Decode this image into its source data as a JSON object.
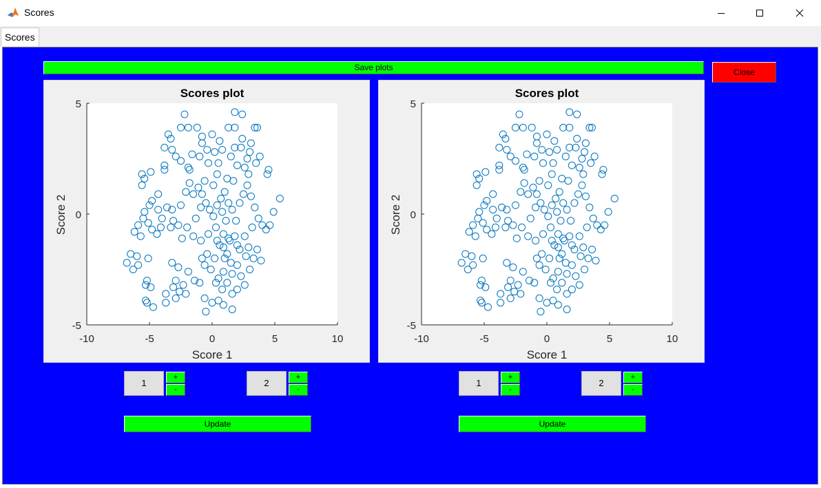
{
  "window": {
    "title": "Scores",
    "minimize": "—",
    "maximize": "☐",
    "close": "✕"
  },
  "tab": {
    "label": "Scores"
  },
  "toolbar": {
    "save_label": "Save plots",
    "close_label": "Close"
  },
  "plots": [
    {
      "title": "Scores plot",
      "xlabel": "Score 1",
      "ylabel": "Score 2",
      "xticks": [
        "-10",
        "-5",
        "0",
        "5",
        "10"
      ],
      "yticks": [
        "5",
        "0",
        "-5"
      ]
    },
    {
      "title": "Scores plot",
      "xlabel": "Score 1",
      "ylabel": "Score 2",
      "xticks": [
        "-10",
        "-5",
        "0",
        "5",
        "10"
      ],
      "yticks": [
        "5",
        "0",
        "-5"
      ]
    }
  ],
  "controls": [
    {
      "x_component": "1",
      "y_component": "2",
      "plus": "+",
      "minus": "-",
      "update_label": "Update"
    },
    {
      "x_component": "1",
      "y_component": "2",
      "plus": "+",
      "minus": "-",
      "update_label": "Update"
    }
  ],
  "colors": {
    "background": "#0000ff",
    "button_green": "#00ff00",
    "button_red": "#ff0000",
    "marker": "#0072bd"
  },
  "chart_data": [
    {
      "type": "scatter",
      "title": "Scores plot",
      "xlabel": "Score 1",
      "ylabel": "Score 2",
      "xlim": [
        -10,
        10
      ],
      "ylim": [
        -5,
        5
      ],
      "grid": false,
      "marker": "open-circle",
      "points": [
        [
          -2.2,
          4.5
        ],
        [
          -3.5,
          3.6
        ],
        [
          -3.3,
          3.4
        ],
        [
          -3.8,
          3.0
        ],
        [
          -2.5,
          3.9
        ],
        [
          -1.9,
          3.9
        ],
        [
          -1.2,
          3.9
        ],
        [
          -0.8,
          3.5
        ],
        [
          0,
          3.6
        ],
        [
          1.3,
          3.9
        ],
        [
          1.8,
          3.9
        ],
        [
          2.4,
          3.4
        ],
        [
          3.4,
          3.9
        ],
        [
          3.6,
          3.9
        ],
        [
          1.8,
          4.6
        ],
        [
          2.4,
          4.5
        ],
        [
          -5.6,
          1.8
        ],
        [
          -5.4,
          1.6
        ],
        [
          -4.9,
          1.9
        ],
        [
          -3.8,
          2.2
        ],
        [
          -3.8,
          2.0
        ],
        [
          -1.9,
          2.1
        ],
        [
          -1.8,
          2.0
        ],
        [
          -2.5,
          2.4
        ],
        [
          -0.3,
          2.3
        ],
        [
          0.5,
          2.3
        ],
        [
          2.0,
          2.2
        ],
        [
          2.6,
          2.1
        ],
        [
          3.5,
          2.3
        ],
        [
          4.5,
          2.0
        ],
        [
          4.4,
          1.8
        ],
        [
          -5.6,
          1.3
        ],
        [
          -1.0,
          2.6
        ],
        [
          0.2,
          2.8
        ],
        [
          1.5,
          2.6
        ],
        [
          3.0,
          2.8
        ],
        [
          -3.2,
          2.9
        ],
        [
          -0.4,
          2.9
        ],
        [
          2.3,
          3.0
        ],
        [
          3.1,
          3.2
        ],
        [
          -2.9,
          2.6
        ],
        [
          -1.6,
          2.7
        ],
        [
          0.8,
          2.9
        ],
        [
          1.8,
          3.0
        ],
        [
          2.8,
          2.5
        ],
        [
          3.8,
          2.6
        ],
        [
          -0.8,
          3.2
        ],
        [
          0.6,
          3.3
        ],
        [
          -4.3,
          0.9
        ],
        [
          -4.8,
          0.6
        ],
        [
          -5.0,
          0.4
        ],
        [
          -5.4,
          0.1
        ],
        [
          -5.5,
          -0.2
        ],
        [
          -5.1,
          -0.4
        ],
        [
          -4.8,
          -0.7
        ],
        [
          -4.4,
          -0.9
        ],
        [
          -4.1,
          -0.6
        ],
        [
          -4.0,
          -0.2
        ],
        [
          -4.3,
          0.2
        ],
        [
          -5.9,
          -0.5
        ],
        [
          -6.2,
          -0.8
        ],
        [
          -5.7,
          -1.0
        ],
        [
          -3.6,
          0.3
        ],
        [
          -3.2,
          0.2
        ],
        [
          -3.1,
          -0.3
        ],
        [
          -3.3,
          -0.6
        ],
        [
          -2.7,
          -0.5
        ],
        [
          -2.5,
          0.4
        ],
        [
          -1.5,
          0.9
        ],
        [
          -1.1,
          1.2
        ],
        [
          -0.8,
          0.9
        ],
        [
          -0.5,
          0.5
        ],
        [
          -0.2,
          0.2
        ],
        [
          0.1,
          -0.1
        ],
        [
          0.4,
          0.4
        ],
        [
          0.7,
          0.7
        ],
        [
          1.0,
          1.0
        ],
        [
          1.3,
          0.5
        ],
        [
          1.6,
          0.2
        ],
        [
          1.9,
          -0.3
        ],
        [
          2.2,
          0.5
        ],
        [
          2.5,
          0.9
        ],
        [
          2.8,
          1.3
        ],
        [
          3.1,
          0.8
        ],
        [
          3.4,
          0.3
        ],
        [
          3.7,
          -0.2
        ],
        [
          4.0,
          -0.5
        ],
        [
          4.3,
          -0.7
        ],
        [
          4.6,
          -0.5
        ],
        [
          4.9,
          0.1
        ],
        [
          5.4,
          0.7
        ],
        [
          3.2,
          -0.6
        ],
        [
          2.6,
          -1.0
        ],
        [
          2.0,
          -1.4
        ],
        [
          1.4,
          -1.2
        ],
        [
          0.9,
          -0.9
        ],
        [
          0.3,
          -0.6
        ],
        [
          -0.3,
          -0.9
        ],
        [
          -0.9,
          -1.2
        ],
        [
          -1.5,
          -1.0
        ],
        [
          -2.0,
          -0.6
        ],
        [
          -2.4,
          -1.1
        ],
        [
          -0.6,
          1.5
        ],
        [
          0.4,
          1.8
        ],
        [
          1.2,
          1.6
        ],
        [
          -1.8,
          1.4
        ],
        [
          -2.1,
          1.0
        ],
        [
          2.9,
          1.8
        ],
        [
          1.7,
          1.5
        ],
        [
          0.1,
          1.3
        ],
        [
          -0.9,
          0.3
        ],
        [
          -1.3,
          -0.2
        ],
        [
          0.8,
          0.1
        ],
        [
          1.1,
          -0.3
        ],
        [
          0.6,
          -1.4
        ],
        [
          1.2,
          -1.8
        ],
        [
          1.5,
          -2.2
        ],
        [
          0.9,
          -2.6
        ],
        [
          0.5,
          -2.9
        ],
        [
          1.2,
          -3.1
        ],
        [
          1.6,
          -2.7
        ],
        [
          2.0,
          -2.3
        ],
        [
          2.3,
          -2.8
        ],
        [
          2.6,
          -3.2
        ],
        [
          2.0,
          -3.4
        ],
        [
          1.6,
          -3.6
        ],
        [
          0.8,
          -3.4
        ],
        [
          0.3,
          -3.1
        ],
        [
          -0.1,
          -2.5
        ],
        [
          0.2,
          -2.0
        ],
        [
          -0.4,
          -1.8
        ],
        [
          -0.6,
          -2.3
        ],
        [
          0.9,
          -1.5
        ],
        [
          1.3,
          -1.1
        ],
        [
          2.9,
          -1.5
        ],
        [
          3.3,
          -2.0
        ],
        [
          3.6,
          -1.6
        ],
        [
          3.9,
          -2.1
        ],
        [
          3.0,
          -2.5
        ],
        [
          2.7,
          -1.9
        ],
        [
          2.2,
          -1.6
        ],
        [
          1.8,
          -1.0
        ],
        [
          1.0,
          -2.0
        ],
        [
          0.4,
          -1.2
        ],
        [
          -6.8,
          -2.2
        ],
        [
          -6.5,
          -1.8
        ],
        [
          -6.0,
          -1.9
        ],
        [
          -5.9,
          -2.3
        ],
        [
          -6.3,
          -2.5
        ],
        [
          -5.1,
          -2.0
        ],
        [
          -5.2,
          -3.0
        ],
        [
          -5.3,
          -3.2
        ],
        [
          -4.9,
          -3.3
        ],
        [
          -5.3,
          -3.9
        ],
        [
          -5.2,
          -4.0
        ],
        [
          -4.7,
          -4.2
        ],
        [
          -3.7,
          -3.6
        ],
        [
          -3.7,
          -4.0
        ],
        [
          -2.7,
          -2.4
        ],
        [
          -3.2,
          -2.2
        ],
        [
          -2.9,
          -3.0
        ],
        [
          -3.1,
          -3.3
        ],
        [
          -2.6,
          -3.5
        ],
        [
          -2.9,
          -3.8
        ],
        [
          -2.3,
          -3.2
        ],
        [
          -2.1,
          -3.6
        ],
        [
          -0.6,
          -3.8
        ],
        [
          0,
          -4.0
        ],
        [
          0.5,
          -3.9
        ],
        [
          0.9,
          -4.1
        ],
        [
          1.6,
          -4.3
        ],
        [
          -0.5,
          -4.4
        ],
        [
          -0.8,
          -2.0
        ],
        [
          -1.4,
          -3.0
        ],
        [
          -1.0,
          -3.1
        ],
        [
          -1.9,
          -2.6
        ]
      ]
    },
    {
      "type": "scatter",
      "title": "Scores plot",
      "xlabel": "Score 1",
      "ylabel": "Score 2",
      "xlim": [
        -10,
        10
      ],
      "ylim": [
        -5,
        5
      ],
      "grid": false,
      "marker": "open-circle",
      "points": [
        [
          -2.2,
          4.5
        ],
        [
          -3.5,
          3.6
        ],
        [
          -3.3,
          3.4
        ],
        [
          -3.8,
          3.0
        ],
        [
          -2.5,
          3.9
        ],
        [
          -1.9,
          3.9
        ],
        [
          -1.2,
          3.9
        ],
        [
          -0.8,
          3.5
        ],
        [
          0,
          3.6
        ],
        [
          1.3,
          3.9
        ],
        [
          1.8,
          3.9
        ],
        [
          2.4,
          3.4
        ],
        [
          3.4,
          3.9
        ],
        [
          3.6,
          3.9
        ],
        [
          1.8,
          4.6
        ],
        [
          2.4,
          4.5
        ],
        [
          -5.6,
          1.8
        ],
        [
          -5.4,
          1.6
        ],
        [
          -4.9,
          1.9
        ],
        [
          -3.8,
          2.2
        ],
        [
          -3.8,
          2.0
        ],
        [
          -1.9,
          2.1
        ],
        [
          -1.8,
          2.0
        ],
        [
          -2.5,
          2.4
        ],
        [
          -0.3,
          2.3
        ],
        [
          0.5,
          2.3
        ],
        [
          2.0,
          2.2
        ],
        [
          2.6,
          2.1
        ],
        [
          3.5,
          2.3
        ],
        [
          4.5,
          2.0
        ],
        [
          4.4,
          1.8
        ],
        [
          -5.6,
          1.3
        ],
        [
          -1.0,
          2.6
        ],
        [
          0.2,
          2.8
        ],
        [
          1.5,
          2.6
        ],
        [
          3.0,
          2.8
        ],
        [
          -3.2,
          2.9
        ],
        [
          -0.4,
          2.9
        ],
        [
          2.3,
          3.0
        ],
        [
          3.1,
          3.2
        ],
        [
          -2.9,
          2.6
        ],
        [
          -1.6,
          2.7
        ],
        [
          0.8,
          2.9
        ],
        [
          1.8,
          3.0
        ],
        [
          2.8,
          2.5
        ],
        [
          3.8,
          2.6
        ],
        [
          -0.8,
          3.2
        ],
        [
          0.6,
          3.3
        ],
        [
          -4.3,
          0.9
        ],
        [
          -4.8,
          0.6
        ],
        [
          -5.0,
          0.4
        ],
        [
          -5.4,
          0.1
        ],
        [
          -5.5,
          -0.2
        ],
        [
          -5.1,
          -0.4
        ],
        [
          -4.8,
          -0.7
        ],
        [
          -4.4,
          -0.9
        ],
        [
          -4.1,
          -0.6
        ],
        [
          -4.0,
          -0.2
        ],
        [
          -4.3,
          0.2
        ],
        [
          -5.9,
          -0.5
        ],
        [
          -6.2,
          -0.8
        ],
        [
          -5.7,
          -1.0
        ],
        [
          -3.6,
          0.3
        ],
        [
          -3.2,
          0.2
        ],
        [
          -3.1,
          -0.3
        ],
        [
          -3.3,
          -0.6
        ],
        [
          -2.7,
          -0.5
        ],
        [
          -2.5,
          0.4
        ],
        [
          -1.5,
          0.9
        ],
        [
          -1.1,
          1.2
        ],
        [
          -0.8,
          0.9
        ],
        [
          -0.5,
          0.5
        ],
        [
          -0.2,
          0.2
        ],
        [
          0.1,
          -0.1
        ],
        [
          0.4,
          0.4
        ],
        [
          0.7,
          0.7
        ],
        [
          1.0,
          1.0
        ],
        [
          1.3,
          0.5
        ],
        [
          1.6,
          0.2
        ],
        [
          1.9,
          -0.3
        ],
        [
          2.2,
          0.5
        ],
        [
          2.5,
          0.9
        ],
        [
          2.8,
          1.3
        ],
        [
          3.1,
          0.8
        ],
        [
          3.4,
          0.3
        ],
        [
          3.7,
          -0.2
        ],
        [
          4.0,
          -0.5
        ],
        [
          4.3,
          -0.7
        ],
        [
          4.6,
          -0.5
        ],
        [
          4.9,
          0.1
        ],
        [
          5.4,
          0.7
        ],
        [
          3.2,
          -0.6
        ],
        [
          2.6,
          -1.0
        ],
        [
          2.0,
          -1.4
        ],
        [
          1.4,
          -1.2
        ],
        [
          0.9,
          -0.9
        ],
        [
          0.3,
          -0.6
        ],
        [
          -0.3,
          -0.9
        ],
        [
          -0.9,
          -1.2
        ],
        [
          -1.5,
          -1.0
        ],
        [
          -2.0,
          -0.6
        ],
        [
          -2.4,
          -1.1
        ],
        [
          -0.6,
          1.5
        ],
        [
          0.4,
          1.8
        ],
        [
          1.2,
          1.6
        ],
        [
          -1.8,
          1.4
        ],
        [
          -2.1,
          1.0
        ],
        [
          2.9,
          1.8
        ],
        [
          1.7,
          1.5
        ],
        [
          0.1,
          1.3
        ],
        [
          -0.9,
          0.3
        ],
        [
          -1.3,
          -0.2
        ],
        [
          0.8,
          0.1
        ],
        [
          1.1,
          -0.3
        ],
        [
          0.6,
          -1.4
        ],
        [
          1.2,
          -1.8
        ],
        [
          1.5,
          -2.2
        ],
        [
          0.9,
          -2.6
        ],
        [
          0.5,
          -2.9
        ],
        [
          1.2,
          -3.1
        ],
        [
          1.6,
          -2.7
        ],
        [
          2.0,
          -2.3
        ],
        [
          2.3,
          -2.8
        ],
        [
          2.6,
          -3.2
        ],
        [
          2.0,
          -3.4
        ],
        [
          1.6,
          -3.6
        ],
        [
          0.8,
          -3.4
        ],
        [
          0.3,
          -3.1
        ],
        [
          -0.1,
          -2.5
        ],
        [
          0.2,
          -2.0
        ],
        [
          -0.4,
          -1.8
        ],
        [
          -0.6,
          -2.3
        ],
        [
          0.9,
          -1.5
        ],
        [
          1.3,
          -1.1
        ],
        [
          2.9,
          -1.5
        ],
        [
          3.3,
          -2.0
        ],
        [
          3.6,
          -1.6
        ],
        [
          3.9,
          -2.1
        ],
        [
          3.0,
          -2.5
        ],
        [
          2.7,
          -1.9
        ],
        [
          2.2,
          -1.6
        ],
        [
          1.8,
          -1.0
        ],
        [
          1.0,
          -2.0
        ],
        [
          0.4,
          -1.2
        ],
        [
          -6.8,
          -2.2
        ],
        [
          -6.5,
          -1.8
        ],
        [
          -6.0,
          -1.9
        ],
        [
          -5.9,
          -2.3
        ],
        [
          -6.3,
          -2.5
        ],
        [
          -5.1,
          -2.0
        ],
        [
          -5.2,
          -3.0
        ],
        [
          -5.3,
          -3.2
        ],
        [
          -4.9,
          -3.3
        ],
        [
          -5.3,
          -3.9
        ],
        [
          -5.2,
          -4.0
        ],
        [
          -4.7,
          -4.2
        ],
        [
          -3.7,
          -3.6
        ],
        [
          -3.7,
          -4.0
        ],
        [
          -2.7,
          -2.4
        ],
        [
          -3.2,
          -2.2
        ],
        [
          -2.9,
          -3.0
        ],
        [
          -3.1,
          -3.3
        ],
        [
          -2.6,
          -3.5
        ],
        [
          -2.9,
          -3.8
        ],
        [
          -2.3,
          -3.2
        ],
        [
          -2.1,
          -3.6
        ],
        [
          -0.6,
          -3.8
        ],
        [
          0,
          -4.0
        ],
        [
          0.5,
          -3.9
        ],
        [
          0.9,
          -4.1
        ],
        [
          1.6,
          -4.3
        ],
        [
          -0.5,
          -4.4
        ],
        [
          -0.8,
          -2.0
        ],
        [
          -1.4,
          -3.0
        ],
        [
          -1.0,
          -3.1
        ],
        [
          -1.9,
          -2.6
        ]
      ]
    }
  ]
}
